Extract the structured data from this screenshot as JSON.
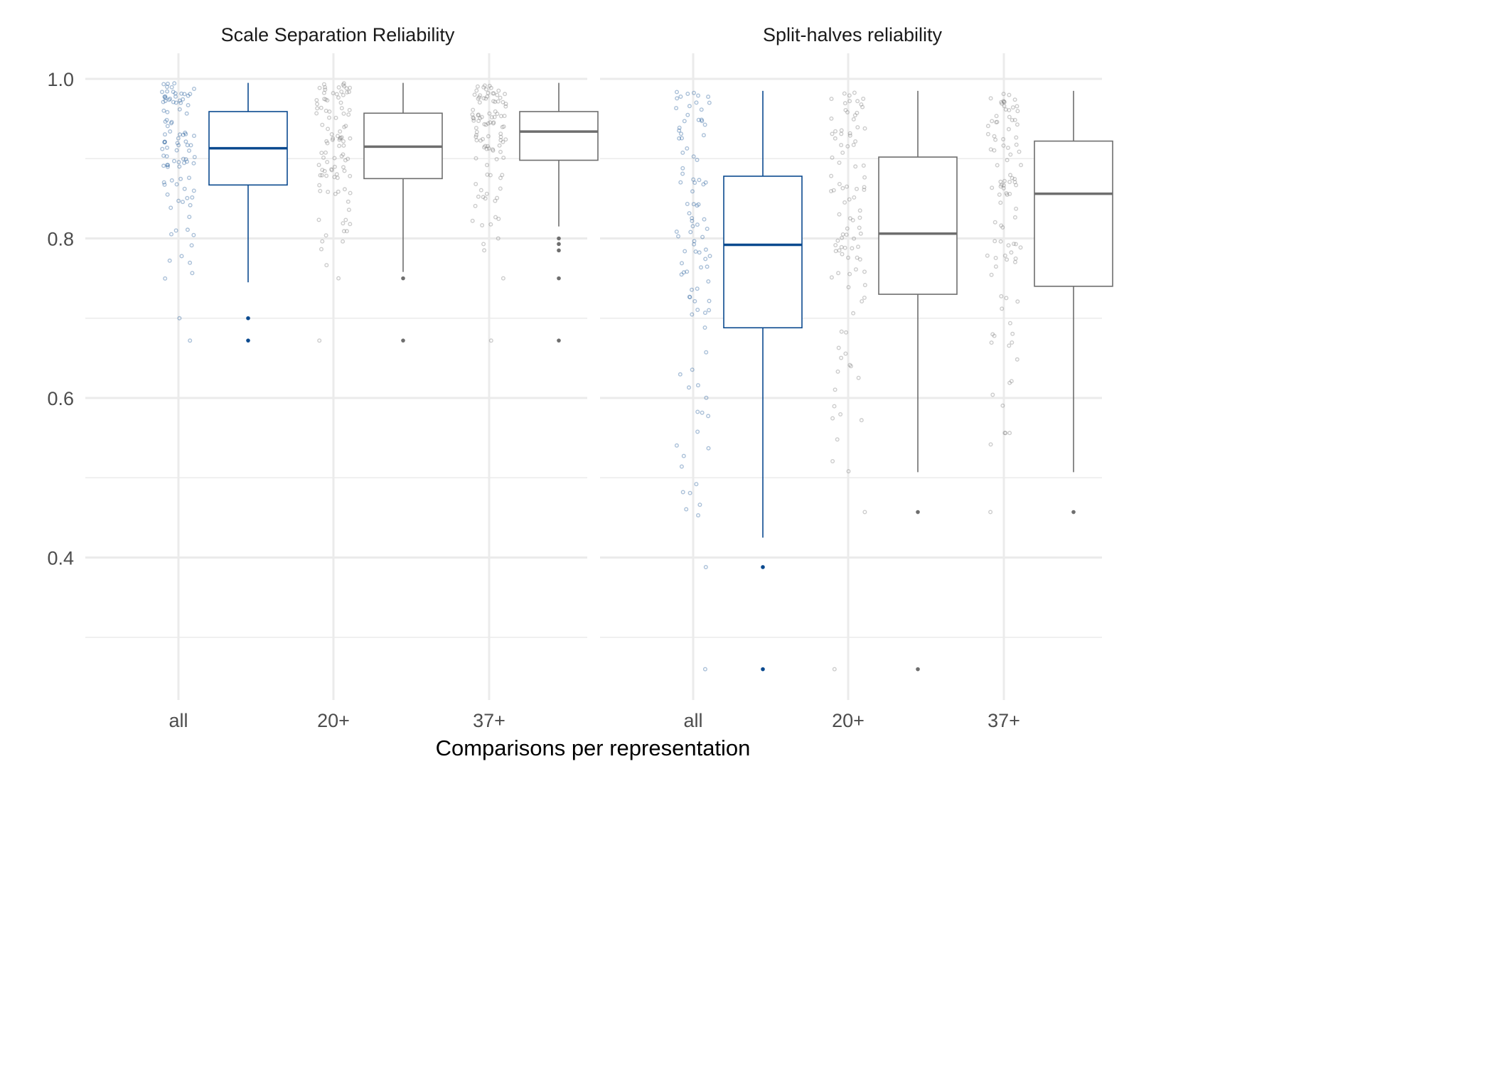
{
  "chart_data": {
    "type": "boxplot",
    "xlabel": "Comparisons per representation",
    "ylabel": "",
    "ylim": [
      0.25,
      1.02
    ],
    "yticks": [
      0.4,
      0.6,
      0.8,
      1.0
    ],
    "ytick_labels": [
      "0.4",
      "0.6",
      "0.8",
      "1.0"
    ],
    "categories": [
      "all",
      "20+",
      "37+"
    ],
    "grid": true,
    "legend": "none",
    "colors": {
      "highlight": "#0b4a8f",
      "default": "#6e6e6e",
      "grid": "#ebebeb"
    },
    "panels": [
      {
        "title": "Scale Separation Reliability",
        "boxes": [
          {
            "category": "all",
            "highlight": true,
            "min": 0.745,
            "q1": 0.867,
            "median": 0.913,
            "q3": 0.959,
            "max": 0.995,
            "outliers": [
              0.7,
              0.672
            ]
          },
          {
            "category": "20+",
            "highlight": false,
            "min": 0.758,
            "q1": 0.875,
            "median": 0.915,
            "q3": 0.957,
            "max": 0.995,
            "outliers": [
              0.75,
              0.672
            ]
          },
          {
            "category": "37+",
            "highlight": false,
            "min": 0.815,
            "q1": 0.898,
            "median": 0.934,
            "q3": 0.959,
            "max": 0.995,
            "outliers": [
              0.8,
              0.793,
              0.785,
              0.75,
              0.672
            ]
          }
        ]
      },
      {
        "title": "Split-halves reliability",
        "boxes": [
          {
            "category": "all",
            "highlight": true,
            "min": 0.425,
            "q1": 0.688,
            "median": 0.792,
            "q3": 0.878,
            "max": 0.985,
            "outliers": [
              0.388,
              0.26
            ]
          },
          {
            "category": "20+",
            "highlight": false,
            "min": 0.507,
            "q1": 0.73,
            "median": 0.806,
            "q3": 0.902,
            "max": 0.985,
            "outliers": [
              0.457,
              0.26
            ]
          },
          {
            "category": "37+",
            "highlight": false,
            "min": 0.507,
            "q1": 0.74,
            "median": 0.856,
            "q3": 0.922,
            "max": 0.985,
            "outliers": [
              0.457
            ]
          }
        ]
      }
    ]
  }
}
